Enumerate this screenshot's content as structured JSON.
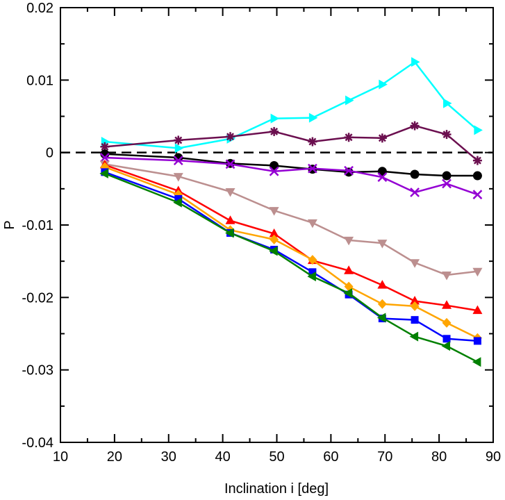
{
  "chart_data": {
    "type": "line",
    "title": "",
    "xlabel": "Inclination i [deg]",
    "ylabel": "P",
    "xlim": [
      10,
      90
    ],
    "ylim": [
      -0.04,
      0.02
    ],
    "xticks": [
      10,
      20,
      30,
      40,
      50,
      60,
      70,
      80,
      90
    ],
    "yticks": [
      -0.04,
      -0.03,
      -0.02,
      -0.01,
      0,
      0.01,
      0.02
    ],
    "xtick_labels": [
      "10",
      "20",
      "30",
      "40",
      "50",
      "60",
      "70",
      "80",
      "90"
    ],
    "ytick_labels": [
      "-0.04",
      "-0.03",
      "-0.02",
      "-0.01",
      "0",
      "0.01",
      "0.02"
    ],
    "grid": false,
    "reference_line": {
      "y": 0,
      "style": "dashed",
      "color": "#000000"
    },
    "x": [
      18.2,
      31.8,
      41.4,
      49.5,
      56.6,
      63.3,
      69.5,
      75.5,
      81.4,
      87.1
    ],
    "series": [
      {
        "color": "#00ffff",
        "marker": "triangle-right",
        "values": [
          0.0015,
          0.0006,
          0.0019,
          0.0047,
          0.0048,
          0.0072,
          0.0094,
          0.0125,
          0.0068,
          0.0031
        ]
      },
      {
        "color": "#6b0f4f",
        "marker": "asterisk",
        "values": [
          0.0008,
          0.0017,
          0.0022,
          0.0029,
          0.0015,
          0.0021,
          0.002,
          0.0037,
          0.0025,
          -0.0011
        ]
      },
      {
        "color": "#000000",
        "marker": "circle",
        "values": [
          -0.0002,
          -0.0007,
          -0.0015,
          -0.0018,
          -0.0023,
          -0.0027,
          -0.0026,
          -0.003,
          -0.0032,
          -0.0032
        ]
      },
      {
        "color": "#9400d3",
        "marker": "x",
        "values": [
          -0.0007,
          -0.0011,
          -0.0016,
          -0.0026,
          -0.0022,
          -0.0025,
          -0.0034,
          -0.0055,
          -0.0043,
          -0.0058
        ]
      },
      {
        "color": "#bc8f8f",
        "marker": "triangle-down",
        "values": [
          -0.0016,
          -0.0033,
          -0.0054,
          -0.008,
          -0.0097,
          -0.0121,
          -0.0125,
          -0.0152,
          -0.0169,
          -0.0164
        ]
      },
      {
        "color": "#ff0000",
        "marker": "triangle-up",
        "values": [
          -0.0017,
          -0.0053,
          -0.0094,
          -0.0112,
          -0.0149,
          -0.0163,
          -0.0183,
          -0.0205,
          -0.0211,
          -0.0218
        ]
      },
      {
        "color": "#ffa500",
        "marker": "diamond",
        "values": [
          -0.002,
          -0.0058,
          -0.0107,
          -0.012,
          -0.0148,
          -0.0185,
          -0.0209,
          -0.0212,
          -0.0235,
          -0.0256
        ]
      },
      {
        "color": "#0000ff",
        "marker": "square",
        "values": [
          -0.0027,
          -0.0064,
          -0.0111,
          -0.0134,
          -0.0165,
          -0.0196,
          -0.0229,
          -0.0231,
          -0.0257,
          -0.026
        ]
      },
      {
        "color": "#008000",
        "marker": "triangle-left",
        "values": [
          -0.0029,
          -0.0069,
          -0.0111,
          -0.0136,
          -0.0171,
          -0.0194,
          -0.0228,
          -0.0254,
          -0.0267,
          -0.0289
        ]
      }
    ]
  }
}
